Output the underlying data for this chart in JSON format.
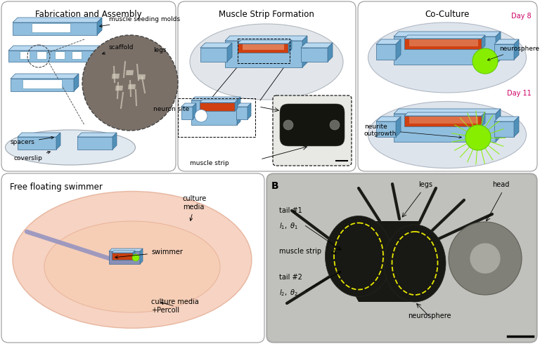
{
  "fig_width": 7.68,
  "fig_height": 4.9,
  "bg_color": "#ffffff",
  "blue_color": "#7ab4d8",
  "blue_top": "#b8d8f0",
  "blue_side": "#5090b8",
  "red_color": "#d04010",
  "green_color": "#88ee00",
  "gray_bg": "#b8b8b4",
  "panel_ec": "#888888",
  "title_fs": 8.5,
  "label_fs": 6.5,
  "fab_panel": [
    2,
    2,
    248,
    242
  ],
  "muscle_panel": [
    253,
    2,
    253,
    242
  ],
  "coculture_panel": [
    509,
    2,
    255,
    242
  ],
  "swimmer_panel": [
    2,
    247,
    374,
    241
  ],
  "biobot_panel": [
    379,
    247,
    385,
    241
  ]
}
